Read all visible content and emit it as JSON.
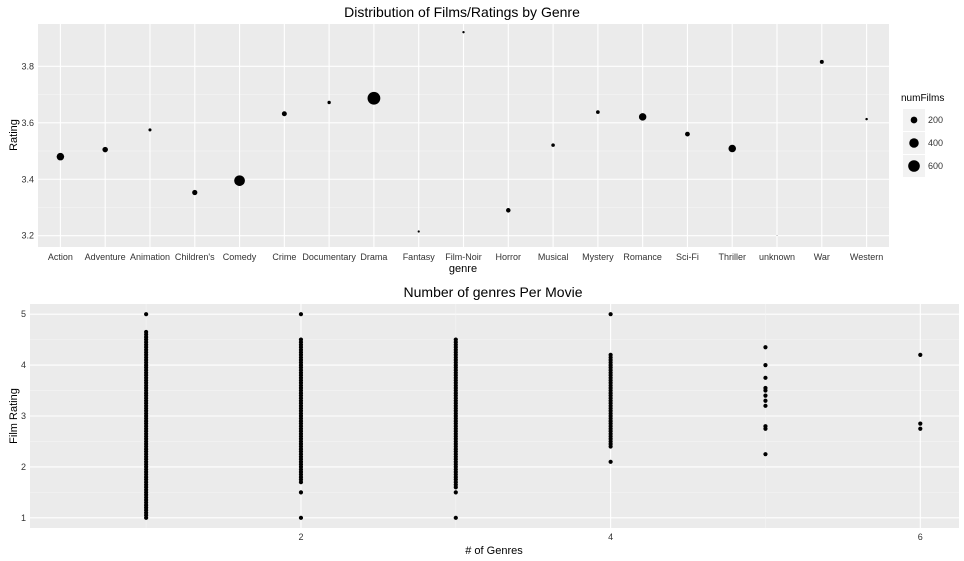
{
  "chart_data": [
    {
      "type": "scatter",
      "title": "Distribution of Films/Ratings by Genre",
      "xlabel": "genre",
      "ylabel": "Rating",
      "categories": [
        "Action",
        "Adventure",
        "Animation",
        "Children's",
        "Comedy",
        "Crime",
        "Documentary",
        "Drama",
        "Fantasy",
        "Film-Noir",
        "Horror",
        "Musical",
        "Mystery",
        "Romance",
        "Sci-Fi",
        "Thriller",
        "unknown",
        "War",
        "Western"
      ],
      "y_ticks": [
        "3.2",
        "3.4",
        "3.6",
        "3.8"
      ],
      "ylim": [
        3.16,
        3.95
      ],
      "grid": true,
      "points": [
        {
          "genre": "Action",
          "rating": 3.48,
          "numFilms": 251
        },
        {
          "genre": "Adventure",
          "rating": 3.505,
          "numFilms": 135
        },
        {
          "genre": "Animation",
          "rating": 3.575,
          "numFilms": 42
        },
        {
          "genre": "Children's",
          "rating": 3.353,
          "numFilms": 122
        },
        {
          "genre": "Comedy",
          "rating": 3.395,
          "numFilms": 505
        },
        {
          "genre": "Crime",
          "rating": 3.632,
          "numFilms": 109
        },
        {
          "genre": "Documentary",
          "rating": 3.672,
          "numFilms": 50
        },
        {
          "genre": "Drama",
          "rating": 3.687,
          "numFilms": 725
        },
        {
          "genre": "Fantasy",
          "rating": 3.215,
          "numFilms": 22
        },
        {
          "genre": "Film-Noir",
          "rating": 3.921,
          "numFilms": 24
        },
        {
          "genre": "Horror",
          "rating": 3.29,
          "numFilms": 92
        },
        {
          "genre": "Musical",
          "rating": 3.521,
          "numFilms": 56
        },
        {
          "genre": "Mystery",
          "rating": 3.638,
          "numFilms": 61
        },
        {
          "genre": "Romance",
          "rating": 3.621,
          "numFilms": 247
        },
        {
          "genre": "Sci-Fi",
          "rating": 3.56,
          "numFilms": 101
        },
        {
          "genre": "Thriller",
          "rating": 3.509,
          "numFilms": 251
        },
        {
          "genre": "unknown",
          "rating": 3.2,
          "numFilms": 2
        },
        {
          "genre": "War",
          "rating": 3.816,
          "numFilms": 71
        },
        {
          "genre": "Western",
          "rating": 3.613,
          "numFilms": 27
        }
      ],
      "legend": {
        "title": "numFilms",
        "position": "right",
        "entries": [
          {
            "label": "200",
            "value": 200
          },
          {
            "label": "400",
            "value": 400
          },
          {
            "label": "600",
            "value": 600
          }
        ]
      }
    },
    {
      "type": "scatter",
      "title": "Number of genres Per Movie",
      "xlabel": "# of Genres",
      "ylabel": "Film Rating",
      "x_ticks": [
        "2",
        "4",
        "6"
      ],
      "y_ticks": [
        "1",
        "2",
        "3",
        "4",
        "5"
      ],
      "xlim": [
        0.25,
        6.25
      ],
      "ylim": [
        0.8,
        5.2
      ],
      "grid": true,
      "columns": [
        {
          "x": 1,
          "ranges": [
            [
              1.0,
              4.65
            ]
          ],
          "extra": [
            5.0
          ]
        },
        {
          "x": 2,
          "ranges": [
            [
              1.7,
              4.5
            ]
          ],
          "extra": [
            1.0,
            1.5,
            5.0
          ]
        },
        {
          "x": 3,
          "ranges": [
            [
              1.6,
              4.5
            ]
          ],
          "extra": [
            1.0,
            1.5
          ]
        },
        {
          "x": 4,
          "ranges": [
            [
              2.4,
              4.2
            ]
          ],
          "extra": [
            2.1,
            5.0
          ]
        },
        {
          "x": 5,
          "values": [
            2.25,
            2.75,
            2.8,
            3.2,
            3.3,
            3.4,
            3.5,
            3.55,
            3.75,
            4.0,
            4.35
          ]
        },
        {
          "x": 6,
          "values": [
            2.75,
            2.85,
            4.2
          ]
        }
      ]
    }
  ]
}
